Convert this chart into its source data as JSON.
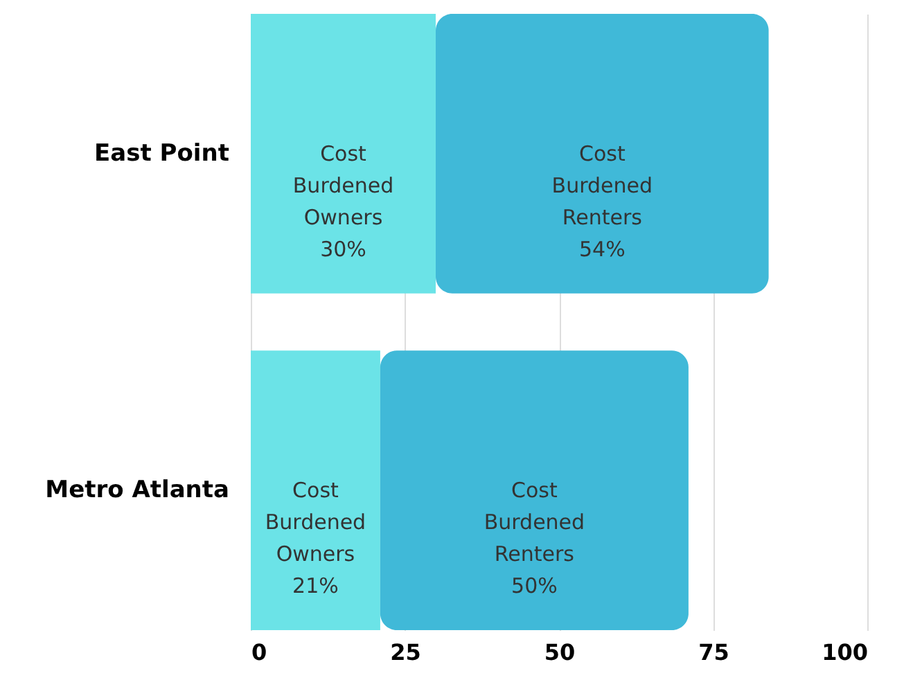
{
  "chart_data": {
    "type": "bar",
    "orientation": "horizontal",
    "stacked": true,
    "categories": [
      "East Point",
      "Metro Atlanta"
    ],
    "series": [
      {
        "name": "Cost Burdened Owners",
        "color": "#6be3e7",
        "values": [
          30,
          21
        ],
        "value_labels": [
          "30%",
          "21%"
        ]
      },
      {
        "name": "Cost Burdened Renters",
        "color": "#40b9d8",
        "values": [
          54,
          50
        ],
        "value_labels": [
          "54%",
          "50%"
        ]
      }
    ],
    "xlim": [
      0,
      100
    ],
    "xticks": [
      0,
      25,
      50,
      75,
      100
    ],
    "grid": "x",
    "legend": false
  }
}
